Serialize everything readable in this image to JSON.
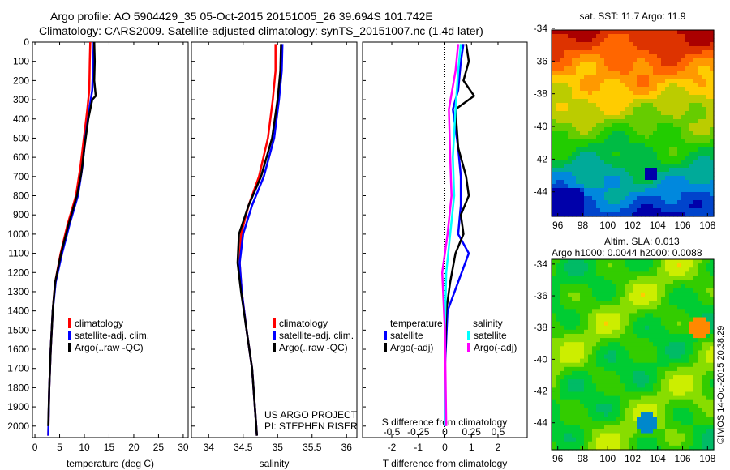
{
  "title_line1": "Argo profile: AO 5904429_35 05-Oct-2015 20151005_26 39.694S 101.742E",
  "title_line2": "Climatology: CARS2009. Satellite-adjusted climatology: synTS_20151007.nc (1.4d later)",
  "credit": "US ARGO PROJECT",
  "pi": "PI: STEPHEN RISER",
  "stamp": "©IMOS 14-Oct-2015 20:38:29",
  "colors": {
    "climatology": "#ff0000",
    "satellite": "#0000ff",
    "argo": "#000000",
    "sat_salinity": "#00ffff",
    "argo_salinity": "#ff00ff"
  },
  "chart_data": [
    {
      "type": "line",
      "xlabel": "temperature (deg C)",
      "ylabel": "",
      "xlim": [
        -0.5,
        31
      ],
      "ylim": [
        2060,
        0
      ],
      "xticks": [
        0,
        5,
        10,
        15,
        20,
        25,
        30
      ],
      "yticks": [
        0,
        100,
        200,
        300,
        400,
        500,
        600,
        700,
        800,
        900,
        1000,
        1100,
        1200,
        1300,
        1400,
        1500,
        1600,
        1700,
        1800,
        1900,
        2000
      ],
      "legend": [
        "climatology",
        "satellite-adj. clim.",
        "Argo(..raw -QC)"
      ],
      "series": [
        {
          "name": "climatology",
          "color": "#ff0000",
          "points": [
            [
              11.2,
              0
            ],
            [
              11.1,
              100
            ],
            [
              11,
              250
            ],
            [
              10.6,
              350
            ],
            [
              9.9,
              500
            ],
            [
              9.2,
              650
            ],
            [
              8.3,
              800
            ],
            [
              6.6,
              950
            ],
            [
              5.2,
              1100
            ],
            [
              4.1,
              1250
            ],
            [
              3.6,
              1400
            ],
            [
              3.2,
              1600
            ],
            [
              2.9,
              1800
            ],
            [
              2.7,
              2050
            ]
          ]
        },
        {
          "name": "satellite-adj. clim.",
          "color": "#0000ff",
          "points": [
            [
              11.9,
              0
            ],
            [
              11.8,
              100
            ],
            [
              11.6,
              250
            ],
            [
              11,
              350
            ],
            [
              10.2,
              500
            ],
            [
              9.6,
              650
            ],
            [
              8.7,
              800
            ],
            [
              7,
              950
            ],
            [
              5.5,
              1100
            ],
            [
              4.2,
              1250
            ],
            [
              3.6,
              1400
            ],
            [
              3.2,
              1600
            ],
            [
              2.9,
              1800
            ],
            [
              2.7,
              2050
            ]
          ]
        },
        {
          "name": "Argo(..raw -QC)",
          "color": "#000000",
          "points": [
            [
              12,
              0
            ],
            [
              12.1,
              100
            ],
            [
              12,
              200
            ],
            [
              12.3,
              280
            ],
            [
              11.6,
              300
            ],
            [
              10.8,
              400
            ],
            [
              10,
              550
            ],
            [
              9.4,
              680
            ],
            [
              8.5,
              800
            ],
            [
              6.8,
              950
            ],
            [
              5.3,
              1100
            ],
            [
              4.1,
              1250
            ],
            [
              3.6,
              1400
            ],
            [
              3.2,
              1600
            ],
            [
              2.9,
              1800
            ],
            [
              2.7,
              2000
            ]
          ]
        }
      ]
    },
    {
      "type": "line",
      "xlabel": "salinity",
      "xlim": [
        33.75,
        36.15
      ],
      "ylim": [
        2060,
        0
      ],
      "xticks": [
        34,
        34.5,
        35,
        35.5,
        36
      ],
      "legend": [
        "climatology",
        "satellite-adj. clim.",
        "Argo(..raw -QC)"
      ],
      "series": [
        {
          "name": "climatology",
          "color": "#ff0000",
          "points": [
            [
              34.97,
              10
            ],
            [
              34.97,
              150
            ],
            [
              34.93,
              300
            ],
            [
              34.86,
              500
            ],
            [
              34.73,
              700
            ],
            [
              34.58,
              850
            ],
            [
              34.47,
              1000
            ],
            [
              34.45,
              1150
            ],
            [
              34.48,
              1300
            ],
            [
              34.55,
              1500
            ],
            [
              34.63,
              1700
            ],
            [
              34.7,
              2050
            ]
          ]
        },
        {
          "name": "satellite-adj. clim.",
          "color": "#0000ff",
          "points": [
            [
              35.07,
              10
            ],
            [
              35.06,
              150
            ],
            [
              35.02,
              300
            ],
            [
              34.95,
              500
            ],
            [
              34.8,
              700
            ],
            [
              34.63,
              850
            ],
            [
              34.5,
              1000
            ],
            [
              34.45,
              1150
            ],
            [
              34.48,
              1300
            ],
            [
              34.55,
              1500
            ],
            [
              34.63,
              1700
            ],
            [
              34.7,
              2050
            ]
          ]
        },
        {
          "name": "Argo(..raw -QC)",
          "color": "#000000",
          "points": [
            [
              35.05,
              10
            ],
            [
              35.04,
              150
            ],
            [
              35,
              300
            ],
            [
              34.92,
              500
            ],
            [
              34.76,
              700
            ],
            [
              34.58,
              850
            ],
            [
              34.44,
              1000
            ],
            [
              34.42,
              1150
            ],
            [
              34.47,
              1300
            ],
            [
              34.55,
              1500
            ],
            [
              34.63,
              1700
            ],
            [
              34.7,
              2050
            ]
          ]
        }
      ]
    },
    {
      "type": "line",
      "xlabel": "T difference from climatology",
      "x2label": "S difference from climatology",
      "xlim": [
        -3.1,
        3.1
      ],
      "ylim": [
        2060,
        0
      ],
      "xticks": [
        -2,
        -1,
        0,
        1,
        2
      ],
      "x2ticks": [
        -0.5,
        -0.25,
        0,
        0.25,
        0.5
      ],
      "legend_temperature_title": "temperature",
      "legend_salinity_title": "salinity",
      "legend": [
        "satellite",
        "Argo(-adj)",
        "satellite",
        "Argo(-adj)"
      ],
      "series": [
        {
          "name": "T satellite",
          "color": "#0000ff",
          "points": [
            [
              0.7,
              10
            ],
            [
              0.6,
              100
            ],
            [
              0.5,
              250
            ],
            [
              0.3,
              350
            ],
            [
              0.5,
              550
            ],
            [
              0.6,
              700
            ],
            [
              0.6,
              850
            ],
            [
              0.5,
              1000
            ],
            [
              0.9,
              1100
            ],
            [
              0.5,
              1250
            ],
            [
              0.1,
              1400
            ],
            [
              0,
              1700
            ],
            [
              0,
              2000
            ]
          ]
        },
        {
          "name": "T Argo(-adj)",
          "color": "#000000",
          "points": [
            [
              0.8,
              10
            ],
            [
              0.9,
              100
            ],
            [
              0.7,
              200
            ],
            [
              1.1,
              280
            ],
            [
              0.4,
              350
            ],
            [
              0.5,
              550
            ],
            [
              0.8,
              700
            ],
            [
              0.9,
              800
            ],
            [
              0.6,
              900
            ],
            [
              0.7,
              1000
            ],
            [
              0.4,
              1100
            ],
            [
              0.2,
              1250
            ],
            [
              0.05,
              1400
            ],
            [
              0,
              1700
            ],
            [
              0,
              2000
            ]
          ]
        },
        {
          "name": "S satellite",
          "color": "#00ffff",
          "points": [
            [
              0.6,
              10
            ],
            [
              0.5,
              150
            ],
            [
              0.4,
              350
            ],
            [
              0.3,
              600
            ],
            [
              0.35,
              800
            ],
            [
              0.2,
              1000
            ],
            [
              0.05,
              1200
            ],
            [
              0,
              1500
            ],
            [
              0,
              2000
            ]
          ]
        },
        {
          "name": "S Argo(-adj)",
          "color": "#ff00ff",
          "points": [
            [
              0.5,
              10
            ],
            [
              0.4,
              150
            ],
            [
              0.15,
              350
            ],
            [
              0.2,
              600
            ],
            [
              0.25,
              800
            ],
            [
              0.1,
              1000
            ],
            [
              -0.1,
              1200
            ],
            [
              0,
              1500
            ],
            [
              0.05,
              2000
            ]
          ]
        }
      ]
    },
    {
      "type": "heatmap",
      "title": "sat. SST: 11.7 Argo: 11.9",
      "xticks": [
        96,
        98,
        100,
        102,
        104,
        106,
        108
      ],
      "yticks": [
        -34,
        -36,
        -38,
        -40,
        -42,
        -44
      ],
      "xlim": [
        95.5,
        108.5
      ],
      "ylim": [
        -34.1,
        -45.5
      ]
    },
    {
      "type": "heatmap",
      "title_line1": "Altim. SLA: 0.013",
      "title_line2": "Argo h1000: 0.0044 h2000: 0.0088",
      "xticks": [
        96,
        98,
        100,
        102,
        104,
        106,
        108
      ],
      "yticks": [
        -34,
        -36,
        -38,
        -40,
        -42,
        -44
      ],
      "xlim": [
        95.5,
        108.5
      ],
      "ylim": [
        -33.7,
        -45.7
      ]
    }
  ]
}
